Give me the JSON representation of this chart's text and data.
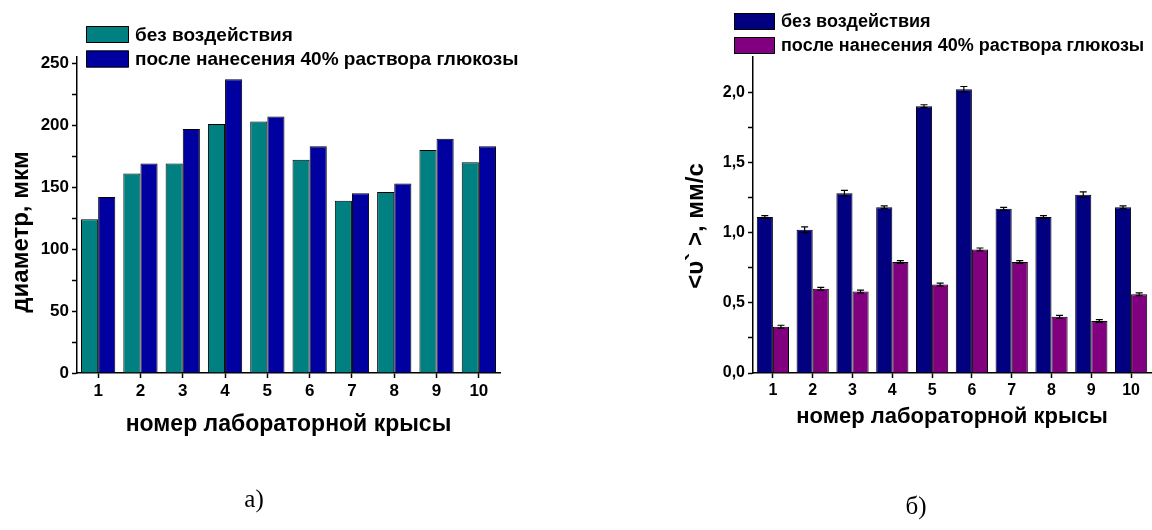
{
  "chart_data": [
    {
      "type": "bar",
      "categories": [
        "1",
        "2",
        "3",
        "4",
        "5",
        "6",
        "7",
        "8",
        "9",
        "10"
      ],
      "xlabel": "номер лабораторной крысы",
      "ylabel": "диаметр, мкм",
      "legend": "top left",
      "ylim": [
        0,
        255
      ],
      "yticks": [
        0,
        {
          "value": 25,
          "label": null
        },
        50,
        {
          "value": 75,
          "label": null
        },
        100,
        {
          "value": 125,
          "label": null
        },
        150,
        {
          "value": 175,
          "label": null
        },
        200,
        {
          "value": 225,
          "label": null
        },
        250
      ],
      "series": [
        {
          "name": "без воздействия",
          "color": "#008080",
          "values": [
            124,
            161,
            169,
            201,
            203,
            172,
            139,
            146,
            180,
            170
          ]
        },
        {
          "name": "после нанесения 40% раствора глюкозы",
          "color": "#0000a0",
          "values": [
            142,
            169,
            197,
            237,
            207,
            183,
            145,
            153,
            189,
            183
          ]
        }
      ],
      "annotations": [
        "а)"
      ]
    },
    {
      "type": "bar",
      "categories": [
        "1",
        "2",
        "3",
        "4",
        "5",
        "6",
        "7",
        "8",
        "9",
        "10"
      ],
      "xlabel": "номер лабораторной крысы",
      "ylabel": "<υ` >, мм/с",
      "legend": "top left",
      "ylim": [
        0,
        2.25
      ],
      "yticks": [
        {
          "value": 0,
          "label": "0,0"
        },
        {
          "value": 0.25,
          "label": null
        },
        {
          "value": 0.5,
          "label": "0,5"
        },
        {
          "value": 0.75,
          "label": null
        },
        {
          "value": 1,
          "label": "1,0"
        },
        {
          "value": 1.25,
          "label": null
        },
        {
          "value": 1.5,
          "label": "1,5"
        },
        {
          "value": 1.75,
          "label": null
        },
        {
          "value": 2,
          "label": "2,0"
        }
      ],
      "series": [
        {
          "name": "без воздействия",
          "color": "#000080",
          "values": [
            1.11,
            1.02,
            1.28,
            1.18,
            1.9,
            2.02,
            1.17,
            1.11,
            1.27,
            1.18
          ],
          "errors": [
            0.01,
            0.02,
            0.02,
            0.01,
            0.01,
            0.02,
            0.01,
            0.01,
            0.02,
            0.01
          ]
        },
        {
          "name": "после нанесения 40% раствора глюкозы",
          "color": "#800080",
          "values": [
            0.33,
            0.6,
            0.58,
            0.79,
            0.63,
            0.88,
            0.79,
            0.4,
            0.37,
            0.56
          ],
          "errors": [
            0.01,
            0.01,
            0.01,
            0.01,
            0.01,
            0.01,
            0.01,
            0.01,
            0.01,
            0.01
          ]
        }
      ],
      "annotations": [
        "б)"
      ]
    }
  ]
}
